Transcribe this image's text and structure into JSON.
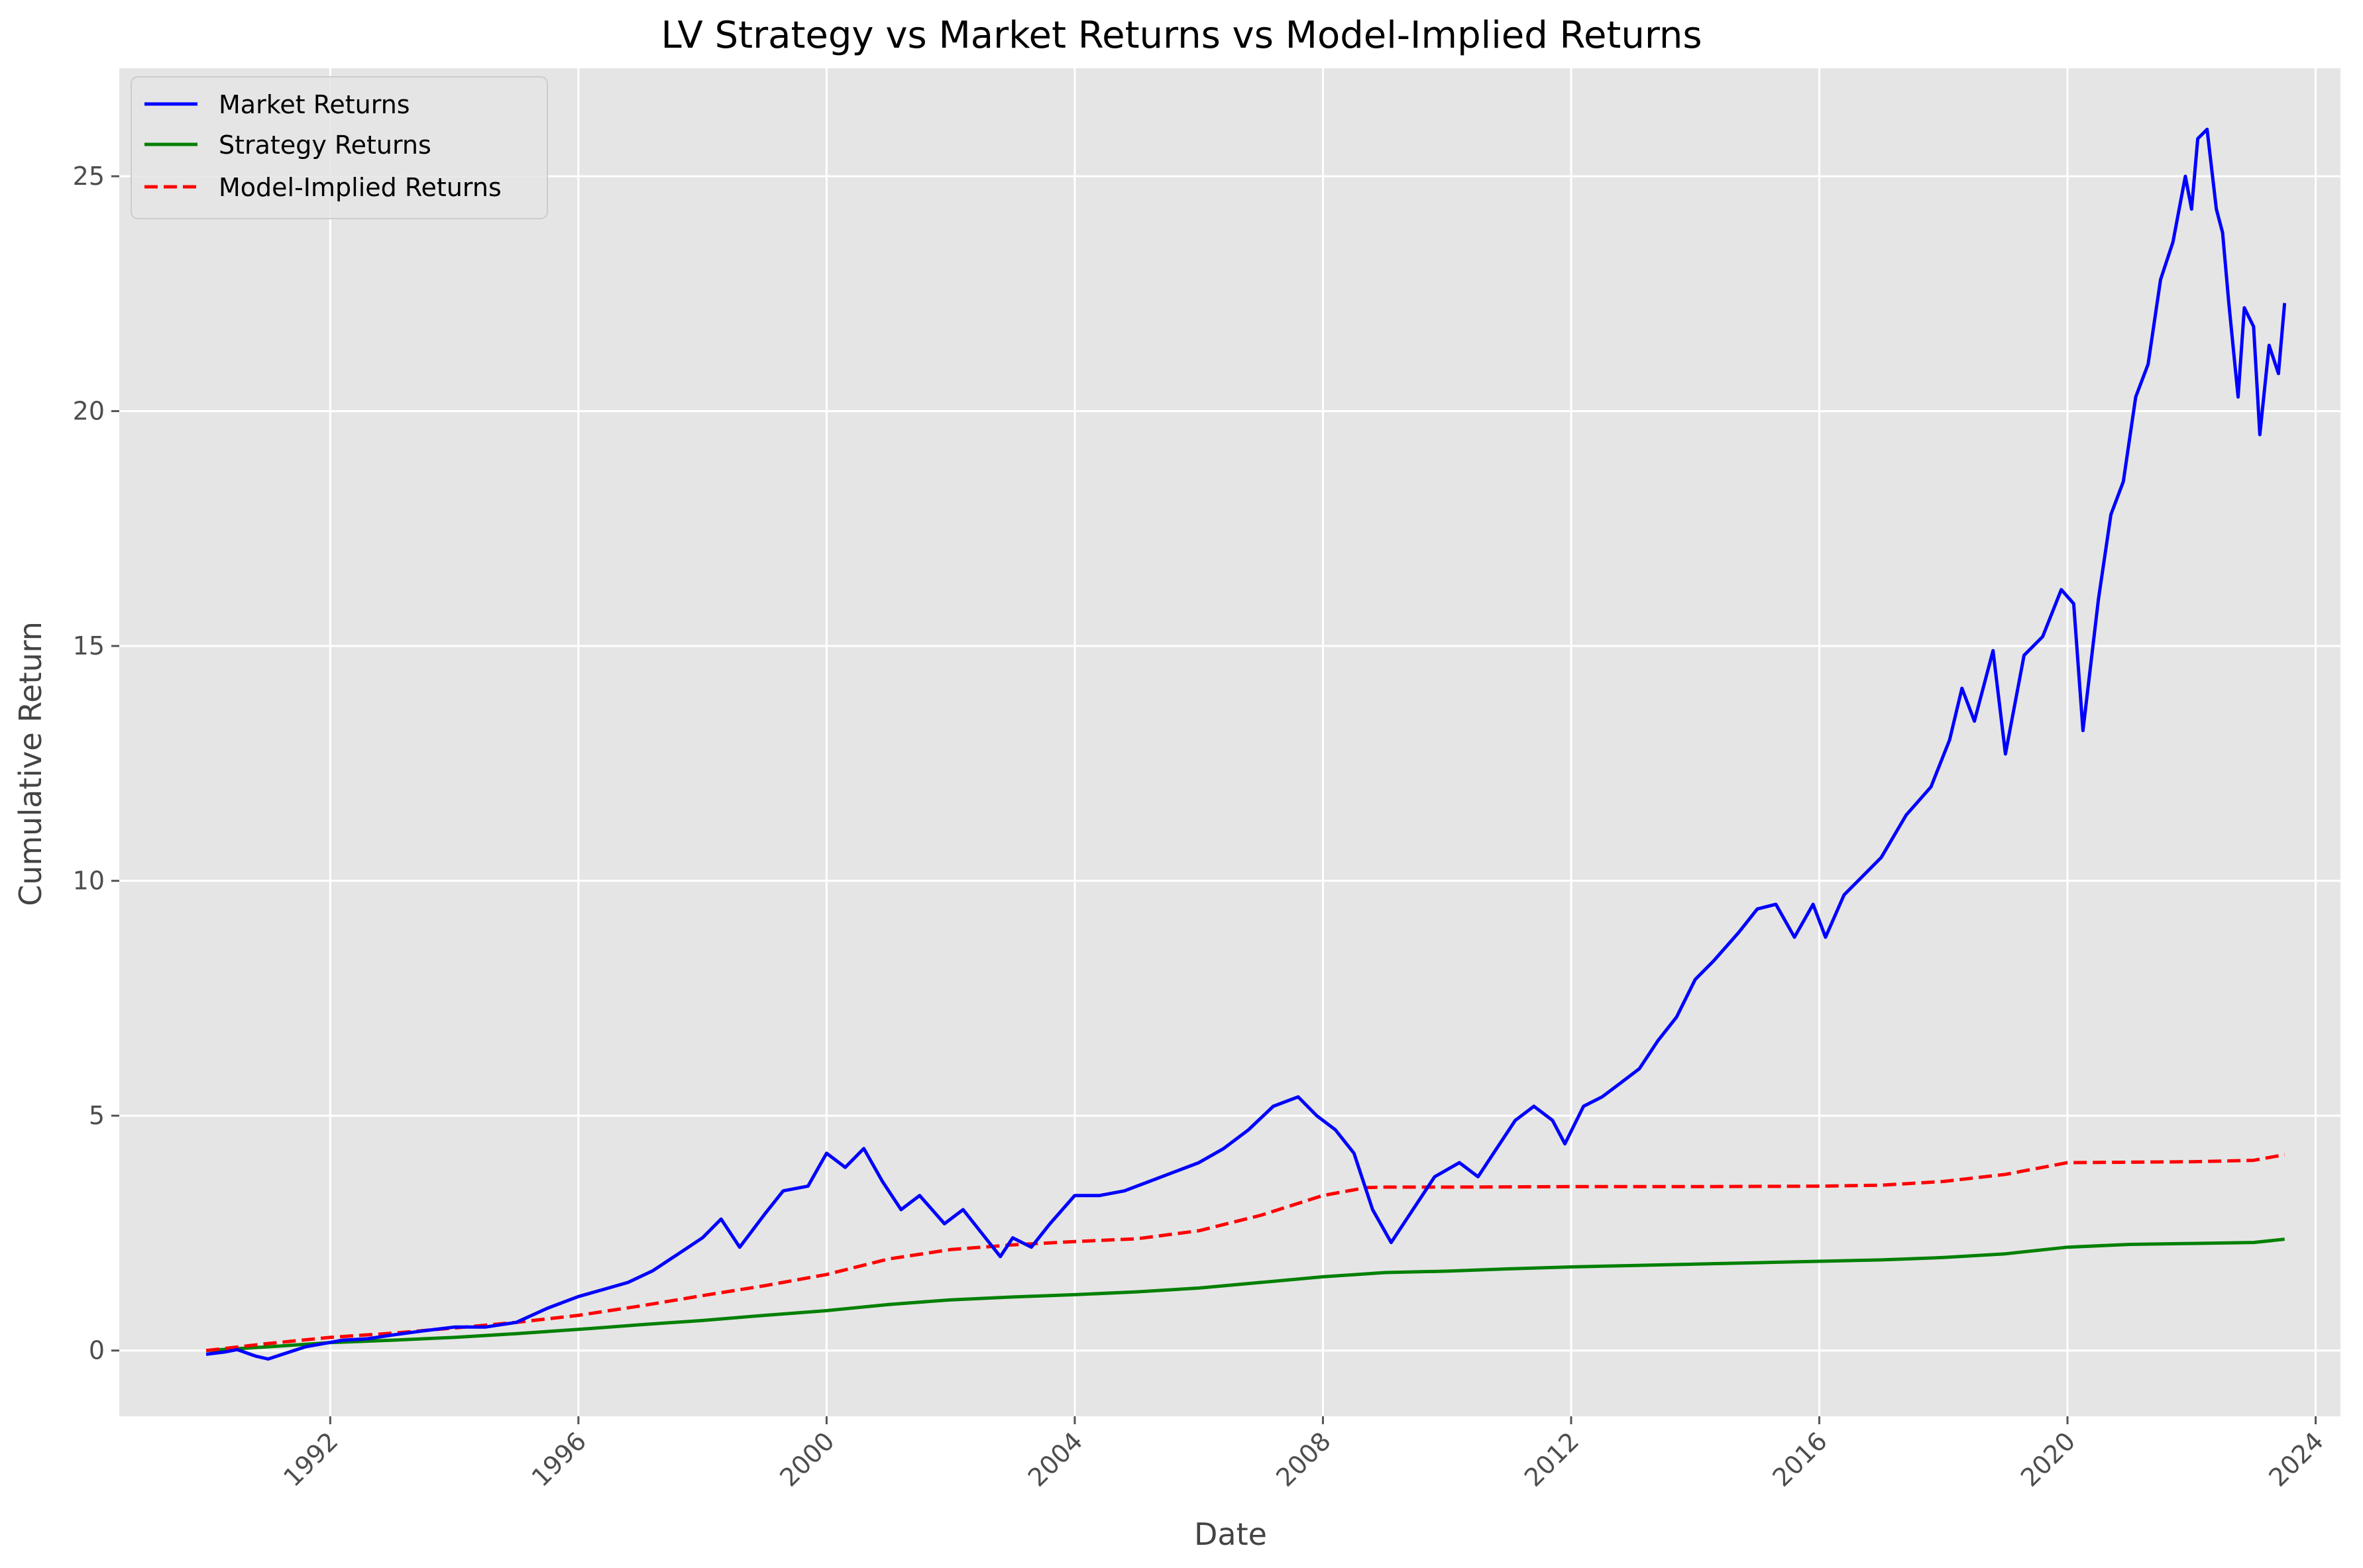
{
  "chart_data": {
    "type": "line",
    "title": "LV Strategy vs Market Returns vs Model-Implied Returns",
    "xlabel": "Date",
    "ylabel": "Cumulative Return",
    "xlim": [
      1988.6,
      2024.4
    ],
    "ylim": [
      -1.4,
      27.3
    ],
    "x_ticks": [
      1992,
      1996,
      2000,
      2004,
      2008,
      2012,
      2016,
      2020,
      2024
    ],
    "x_tick_labels": [
      "1992",
      "1996",
      "2000",
      "2004",
      "2008",
      "2012",
      "2016",
      "2020",
      "2024"
    ],
    "y_ticks": [
      0,
      5,
      10,
      15,
      20,
      25
    ],
    "y_tick_labels": [
      "0",
      "5",
      "10",
      "15",
      "20",
      "25"
    ],
    "grid": true,
    "legend_position": "top-left",
    "series": [
      {
        "name": "Market Returns",
        "color": "#0000ff",
        "style": "solid",
        "points": [
          [
            1990.0,
            -0.08
          ],
          [
            1990.3,
            -0.03
          ],
          [
            1990.5,
            0.02
          ],
          [
            1990.8,
            -0.12
          ],
          [
            1991.0,
            -0.18
          ],
          [
            1991.3,
            -0.05
          ],
          [
            1991.6,
            0.08
          ],
          [
            1991.9,
            0.15
          ],
          [
            1992.2,
            0.22
          ],
          [
            1992.6,
            0.25
          ],
          [
            1993.0,
            0.33
          ],
          [
            1993.5,
            0.42
          ],
          [
            1994.0,
            0.5
          ],
          [
            1994.5,
            0.5
          ],
          [
            1995.0,
            0.6
          ],
          [
            1995.5,
            0.9
          ],
          [
            1996.0,
            1.15
          ],
          [
            1996.4,
            1.3
          ],
          [
            1996.8,
            1.45
          ],
          [
            1997.2,
            1.7
          ],
          [
            1997.6,
            2.05
          ],
          [
            1998.0,
            2.4
          ],
          [
            1998.3,
            2.8
          ],
          [
            1998.6,
            2.2
          ],
          [
            1999.0,
            2.9
          ],
          [
            1999.3,
            3.4
          ],
          [
            1999.7,
            3.5
          ],
          [
            2000.0,
            4.2
          ],
          [
            2000.3,
            3.9
          ],
          [
            2000.6,
            4.3
          ],
          [
            2000.9,
            3.6
          ],
          [
            2001.2,
            3.0
          ],
          [
            2001.5,
            3.3
          ],
          [
            2001.9,
            2.7
          ],
          [
            2002.2,
            3.0
          ],
          [
            2002.5,
            2.5
          ],
          [
            2002.8,
            2.0
          ],
          [
            2003.0,
            2.4
          ],
          [
            2003.3,
            2.2
          ],
          [
            2003.6,
            2.7
          ],
          [
            2004.0,
            3.3
          ],
          [
            2004.4,
            3.3
          ],
          [
            2004.8,
            3.4
          ],
          [
            2005.2,
            3.6
          ],
          [
            2005.6,
            3.8
          ],
          [
            2006.0,
            4.0
          ],
          [
            2006.4,
            4.3
          ],
          [
            2006.8,
            4.7
          ],
          [
            2007.2,
            5.2
          ],
          [
            2007.6,
            5.4
          ],
          [
            2007.9,
            5.0
          ],
          [
            2008.2,
            4.7
          ],
          [
            2008.5,
            4.2
          ],
          [
            2008.8,
            3.0
          ],
          [
            2009.1,
            2.3
          ],
          [
            2009.4,
            2.9
          ],
          [
            2009.8,
            3.7
          ],
          [
            2010.2,
            4.0
          ],
          [
            2010.5,
            3.7
          ],
          [
            2010.8,
            4.3
          ],
          [
            2011.1,
            4.9
          ],
          [
            2011.4,
            5.2
          ],
          [
            2011.7,
            4.9
          ],
          [
            2011.9,
            4.4
          ],
          [
            2012.2,
            5.2
          ],
          [
            2012.5,
            5.4
          ],
          [
            2012.8,
            5.7
          ],
          [
            2013.1,
            6.0
          ],
          [
            2013.4,
            6.6
          ],
          [
            2013.7,
            7.1
          ],
          [
            2014.0,
            7.9
          ],
          [
            2014.3,
            8.3
          ],
          [
            2014.7,
            8.9
          ],
          [
            2015.0,
            9.4
          ],
          [
            2015.3,
            9.5
          ],
          [
            2015.6,
            8.8
          ],
          [
            2015.9,
            9.5
          ],
          [
            2016.1,
            8.8
          ],
          [
            2016.4,
            9.7
          ],
          [
            2016.7,
            10.1
          ],
          [
            2017.0,
            10.5
          ],
          [
            2017.4,
            11.4
          ],
          [
            2017.8,
            12.0
          ],
          [
            2018.1,
            13.0
          ],
          [
            2018.3,
            14.1
          ],
          [
            2018.5,
            13.4
          ],
          [
            2018.8,
            14.9
          ],
          [
            2019.0,
            12.7
          ],
          [
            2019.3,
            14.8
          ],
          [
            2019.6,
            15.2
          ],
          [
            2019.9,
            16.2
          ],
          [
            2020.1,
            15.9
          ],
          [
            2020.25,
            13.2
          ],
          [
            2020.5,
            16.0
          ],
          [
            2020.7,
            17.8
          ],
          [
            2020.9,
            18.5
          ],
          [
            2021.1,
            20.3
          ],
          [
            2021.3,
            21.0
          ],
          [
            2021.5,
            22.8
          ],
          [
            2021.7,
            23.6
          ],
          [
            2021.9,
            25.0
          ],
          [
            2022.0,
            24.3
          ],
          [
            2022.1,
            25.8
          ],
          [
            2022.25,
            26.0
          ],
          [
            2022.4,
            24.3
          ],
          [
            2022.5,
            23.8
          ],
          [
            2022.6,
            22.3
          ],
          [
            2022.75,
            20.3
          ],
          [
            2022.85,
            22.2
          ],
          [
            2023.0,
            21.8
          ],
          [
            2023.1,
            19.5
          ],
          [
            2023.25,
            21.4
          ],
          [
            2023.4,
            20.8
          ],
          [
            2023.5,
            22.3
          ]
        ]
      },
      {
        "name": "Strategy Returns",
        "color": "#008000",
        "style": "solid",
        "points": [
          [
            1990.0,
            0.0
          ],
          [
            1991.0,
            0.08
          ],
          [
            1992.0,
            0.17
          ],
          [
            1993.0,
            0.22
          ],
          [
            1994.0,
            0.28
          ],
          [
            1995.0,
            0.36
          ],
          [
            1996.0,
            0.45
          ],
          [
            1997.0,
            0.55
          ],
          [
            1998.0,
            0.64
          ],
          [
            1999.0,
            0.75
          ],
          [
            2000.0,
            0.85
          ],
          [
            2001.0,
            0.98
          ],
          [
            2002.0,
            1.08
          ],
          [
            2003.0,
            1.14
          ],
          [
            2004.0,
            1.19
          ],
          [
            2005.0,
            1.25
          ],
          [
            2006.0,
            1.33
          ],
          [
            2007.0,
            1.45
          ],
          [
            2008.0,
            1.57
          ],
          [
            2009.0,
            1.66
          ],
          [
            2010.0,
            1.69
          ],
          [
            2011.0,
            1.74
          ],
          [
            2012.0,
            1.78
          ],
          [
            2013.0,
            1.81
          ],
          [
            2014.0,
            1.84
          ],
          [
            2015.0,
            1.87
          ],
          [
            2016.0,
            1.9
          ],
          [
            2017.0,
            1.93
          ],
          [
            2018.0,
            1.98
          ],
          [
            2019.0,
            2.06
          ],
          [
            2020.0,
            2.2
          ],
          [
            2021.0,
            2.26
          ],
          [
            2022.0,
            2.28
          ],
          [
            2023.0,
            2.3
          ],
          [
            2023.5,
            2.37
          ]
        ]
      },
      {
        "name": "Model-Implied Returns",
        "color": "#ff0000",
        "style": "dashed",
        "points": [
          [
            1990.0,
            0.0
          ],
          [
            1991.0,
            0.15
          ],
          [
            1992.0,
            0.28
          ],
          [
            1993.0,
            0.37
          ],
          [
            1994.0,
            0.48
          ],
          [
            1995.0,
            0.6
          ],
          [
            1996.0,
            0.75
          ],
          [
            1997.0,
            0.95
          ],
          [
            1998.0,
            1.17
          ],
          [
            1999.0,
            1.38
          ],
          [
            2000.0,
            1.62
          ],
          [
            2001.0,
            1.95
          ],
          [
            2002.0,
            2.15
          ],
          [
            2003.0,
            2.25
          ],
          [
            2004.0,
            2.32
          ],
          [
            2005.0,
            2.38
          ],
          [
            2006.0,
            2.55
          ],
          [
            2007.0,
            2.88
          ],
          [
            2008.0,
            3.3
          ],
          [
            2008.7,
            3.47
          ],
          [
            2009.0,
            3.48
          ],
          [
            2010.0,
            3.48
          ],
          [
            2012.0,
            3.49
          ],
          [
            2014.0,
            3.49
          ],
          [
            2016.0,
            3.5
          ],
          [
            2017.0,
            3.52
          ],
          [
            2018.0,
            3.6
          ],
          [
            2019.0,
            3.75
          ],
          [
            2020.0,
            4.0
          ],
          [
            2021.0,
            4.01
          ],
          [
            2022.0,
            4.02
          ],
          [
            2023.0,
            4.05
          ],
          [
            2023.5,
            4.17
          ]
        ]
      }
    ]
  }
}
